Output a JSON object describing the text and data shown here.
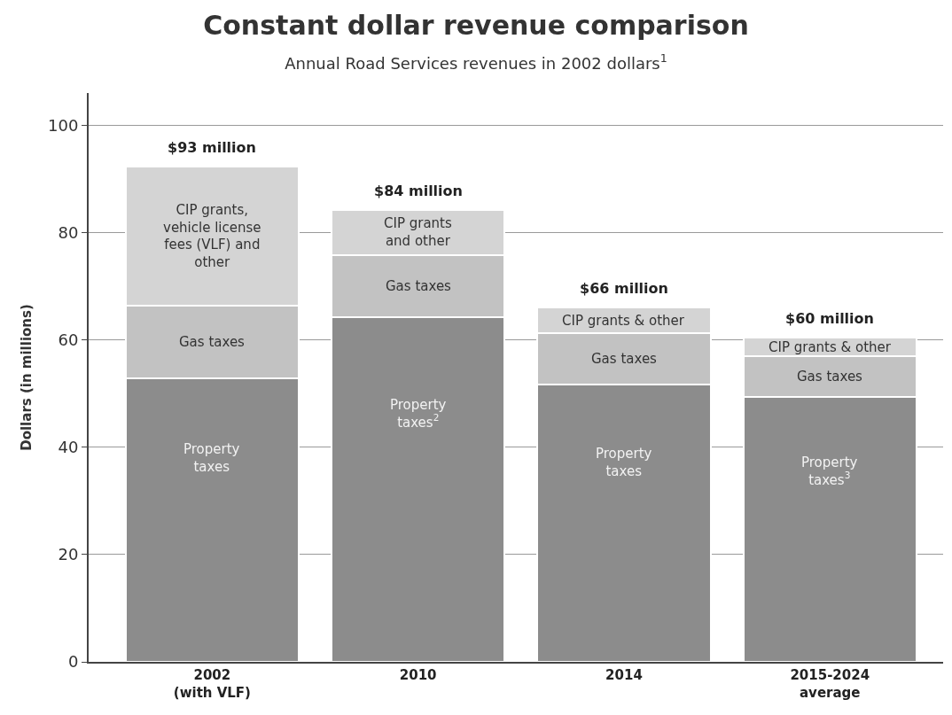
{
  "chart_data": {
    "type": "bar",
    "stacked": true,
    "title": "Constant dollar revenue comparison",
    "subtitle": "Annual Road Services revenues in 2002 dollars$^{1}$",
    "ylabel": "Dollars (in millions)",
    "categories": [
      "2002\n(with VLF)",
      "2010",
      "2014",
      "2015-2024\naverage"
    ],
    "series": [
      {
        "color": "#8c8c8c",
        "values": [
          52.8,
          64.3,
          51.6,
          49.3
        ]
      },
      {
        "color": "#c2c2c2",
        "values": [
          13.5,
          11.5,
          9.6,
          7.6
        ]
      },
      {
        "color": "#d4d4d4",
        "values": [
          26,
          8.4,
          4.8,
          3.5
        ]
      }
    ],
    "totals": [
      "$93 million",
      "$84 million",
      "$66 million",
      "$60 million"
    ],
    "annotations": [
      "Property\ntaxes",
      "Gas taxes",
      "CIP grants,\nvehicle license\nfees (VLF) and\nother",
      "Property\ntaxes$^{2}$",
      "Gas taxes",
      "CIP grants\nand other",
      "Property\ntaxes",
      "Gas taxes",
      "CIP grants & other",
      "Property\ntaxes$^{3}$",
      "Gas taxes",
      "CIP grants & other"
    ],
    "ylim": [
      0,
      106
    ],
    "yticks": [
      0,
      20,
      40,
      60,
      80,
      100
    ],
    "grid": "y"
  }
}
